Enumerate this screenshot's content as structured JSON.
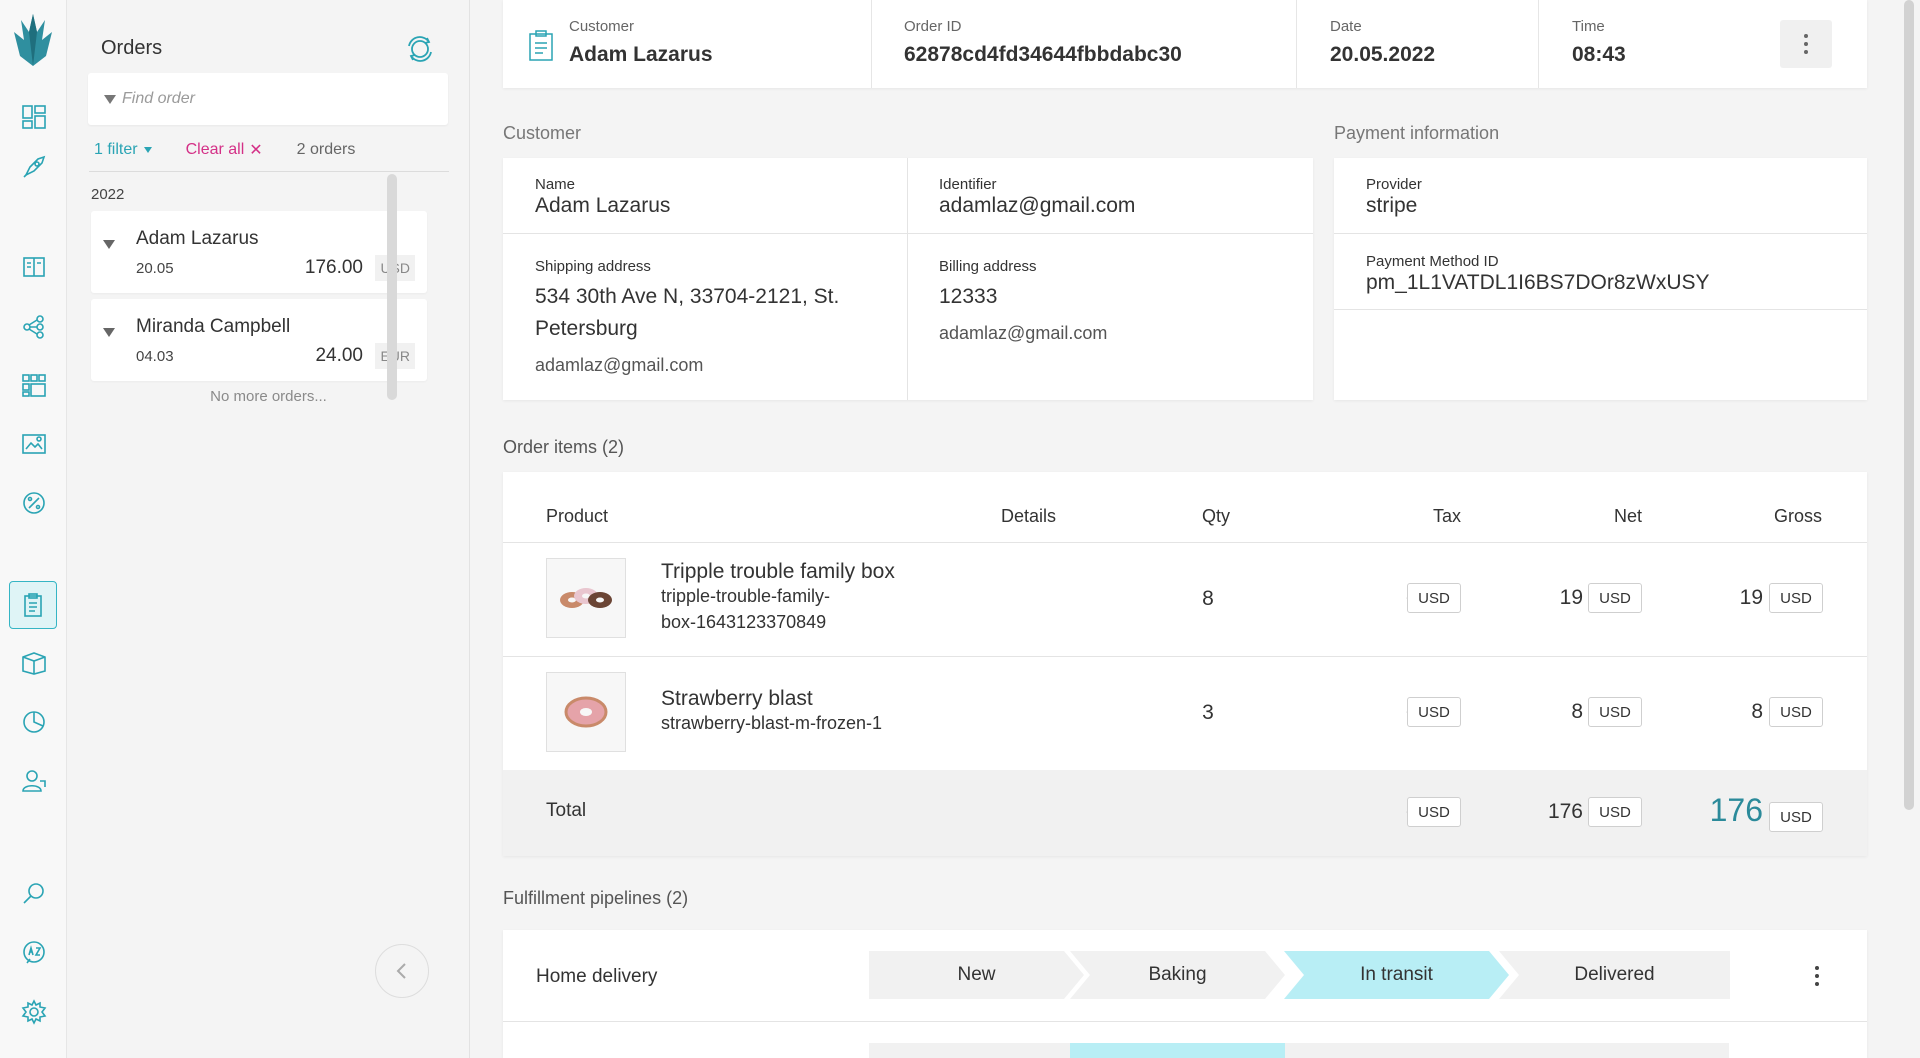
{
  "orders_panel": {
    "title": "Orders",
    "search_placeholder": "Find order",
    "filter_label": "1 filter",
    "clear_label": "Clear all",
    "clear_x": "✕",
    "order_count": "2 orders",
    "year": "2022",
    "orders": [
      {
        "name": "Adam Lazarus",
        "date": "20.05",
        "amount": "176.00",
        "currency": "USD"
      },
      {
        "name": "Miranda Campbell",
        "date": "04.03",
        "amount": "24.00",
        "currency": "EUR"
      }
    ],
    "no_more": "No more orders..."
  },
  "header": {
    "customer_label": "Customer",
    "customer_value": "Adam Lazarus",
    "order_id_label": "Order ID",
    "order_id_value": "62878cd4fd34644fbbdabc30",
    "date_label": "Date",
    "date_value": "20.05.2022",
    "time_label": "Time",
    "time_value": "08:43"
  },
  "customer_section": {
    "title": "Customer",
    "name_label": "Name",
    "name_value": "Adam Lazarus",
    "identifier_label": "Identifier",
    "identifier_value": "adamlaz@gmail.com",
    "shipping_label": "Shipping address",
    "shipping_line1": "534 30th Ave N, 33704-2121, St.",
    "shipping_line2": "Petersburg",
    "shipping_email": "adamlaz@gmail.com",
    "billing_label": "Billing address",
    "billing_value": "12333",
    "billing_email": "adamlaz@gmail.com"
  },
  "payment_section": {
    "title": "Payment information",
    "provider_label": "Provider",
    "provider_value": "stripe",
    "method_label": "Payment Method ID",
    "method_value": "pm_1L1VATDL1I6BS7DOr8zWxUSY"
  },
  "items_section": {
    "title": "Order items (2)",
    "columns": {
      "product": "Product",
      "details": "Details",
      "qty": "Qty",
      "tax": "Tax",
      "net": "Net",
      "gross": "Gross"
    },
    "items": [
      {
        "name": "Tripple trouble family box",
        "sku_line1": "tripple-trouble-family-",
        "sku_line2": "box-1643123370849",
        "qty": "8",
        "tax": "-",
        "tax_cur": "USD",
        "net": "19",
        "net_cur": "USD",
        "gross": "19",
        "gross_cur": "USD"
      },
      {
        "name": "Strawberry blast",
        "sku_line1": "strawberry-blast-m-frozen-1",
        "qty": "3",
        "tax": "-",
        "tax_cur": "USD",
        "net": "8",
        "net_cur": "USD",
        "gross": "8",
        "gross_cur": "USD"
      }
    ],
    "total": {
      "label": "Total",
      "tax": "-",
      "tax_cur": "USD",
      "net": "176",
      "net_cur": "USD",
      "gross": "176",
      "gross_cur": "USD"
    }
  },
  "fulfillment_section": {
    "title": "Fulfillment pipelines (2)",
    "pipeline_name": "Home delivery",
    "steps": [
      "New",
      "Baking",
      "In transit",
      "Delivered"
    ],
    "active_step": "In transit"
  },
  "colors": {
    "accent": "#2aa4b4",
    "active_step": "#b8eef5",
    "inactive_step": "#f1f1f1",
    "clear_link": "#d43087"
  }
}
